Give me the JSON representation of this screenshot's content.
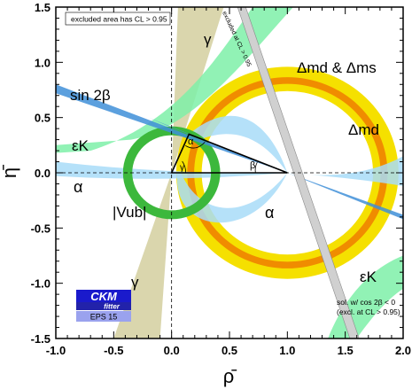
{
  "chart_data": {
    "type": "scatter",
    "title": "",
    "xlabel": "ρ̄",
    "ylabel": "η̄",
    "xlim": [
      -1.0,
      2.0
    ],
    "ylim": [
      -1.5,
      1.5
    ],
    "xticks": [
      "-1.0",
      "-0.5",
      "0.0",
      "0.5",
      "1.0",
      "1.5",
      "2.0"
    ],
    "yticks": [
      "1.5",
      "1.0",
      "0.5",
      "0.0",
      "-0.5",
      "-1.0",
      "-1.5"
    ],
    "apex": {
      "rho": 0.15,
      "eta": 0.35
    },
    "constraints": [
      {
        "name": "sin 2β",
        "color": "#3f8fd8"
      },
      {
        "name": "Δmd & Δms",
        "color": "#f5e000"
      },
      {
        "name": "Δmd",
        "color": "#f08c00"
      },
      {
        "name": "εK",
        "color": "#7ef0a8"
      },
      {
        "name": "εK",
        "color": "#7ef0a8"
      },
      {
        "name": "α",
        "color": "#a8dcf8"
      },
      {
        "name": "α",
        "color": "#a8dcf8"
      },
      {
        "name": "|Vub|",
        "color": "#3cb83c"
      },
      {
        "name": "γ",
        "color": "#d6d2a4"
      },
      {
        "name": "γ",
        "color": "#d6d2a4"
      }
    ],
    "annotations": {
      "excluded_area": "excluded area has CL > 0.95",
      "excluded_band": "excluded at CL > 0.95",
      "sol_line1": "sol. w/ cos 2β < 0",
      "sol_line2": "(excl. at CL > 0.95)",
      "triangle_alpha": "α",
      "triangle_beta": "β",
      "triangle_gamma": "γ"
    },
    "grid": false,
    "legend": "none"
  },
  "logo": {
    "line1": "CKM",
    "line2": "fitter",
    "line3": "EPS 15"
  }
}
